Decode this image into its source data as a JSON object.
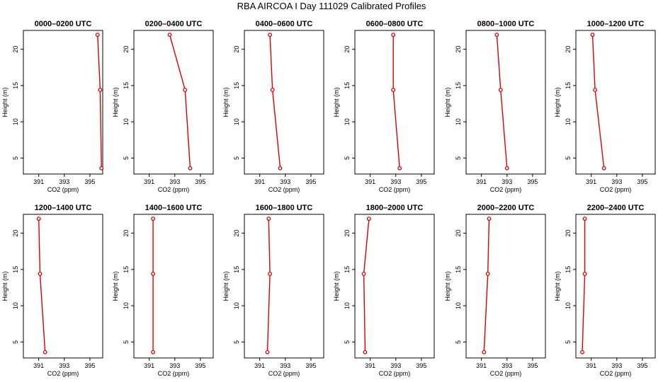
{
  "title": "RBA AIRCOA I  Day 111029  Calibrated Profiles",
  "chart_data": {
    "type": "line",
    "xlabel": "CO2 (ppm)",
    "ylabel": "Height (m)",
    "xlim": [
      389.8,
      396.0
    ],
    "ylim": [
      2.8,
      22.6
    ],
    "xticks": [
      391,
      393,
      395
    ],
    "yticks": [
      5,
      10,
      15,
      20
    ],
    "line_color": "#dd0000",
    "panels": [
      {
        "title": "0000–0200 UTC",
        "x": [
          395.6,
          395.8,
          395.9
        ],
        "y": [
          22,
          14.4,
          3.6
        ]
      },
      {
        "title": "0200–0400 UTC",
        "x": [
          392.6,
          393.8,
          394.2
        ],
        "y": [
          22,
          14.4,
          3.6
        ]
      },
      {
        "title": "0400–0600 UTC",
        "x": [
          391.8,
          392.0,
          392.6
        ],
        "y": [
          22,
          14.4,
          3.6
        ]
      },
      {
        "title": "0600–0800 UTC",
        "x": [
          392.8,
          392.8,
          393.3
        ],
        "y": [
          22,
          14.4,
          3.6
        ]
      },
      {
        "title": "0800–1000 UTC",
        "x": [
          392.2,
          392.5,
          393.0
        ],
        "y": [
          22,
          14.4,
          3.6
        ]
      },
      {
        "title": "1000–1200 UTC",
        "x": [
          391.1,
          391.3,
          392.0
        ],
        "y": [
          22,
          14.4,
          3.6
        ]
      },
      {
        "title": "1200–1400 UTC",
        "x": [
          391.0,
          391.1,
          391.5
        ],
        "y": [
          22,
          14.4,
          3.6
        ]
      },
      {
        "title": "1400–1600 UTC",
        "x": [
          391.3,
          391.3,
          391.3
        ],
        "y": [
          22,
          14.4,
          3.6
        ]
      },
      {
        "title": "1600–1800 UTC",
        "x": [
          391.7,
          391.8,
          391.6
        ],
        "y": [
          22,
          14.4,
          3.6
        ]
      },
      {
        "title": "1800–2000 UTC",
        "x": [
          390.9,
          390.5,
          390.6
        ],
        "y": [
          22,
          14.4,
          3.6
        ]
      },
      {
        "title": "2000–2200 UTC",
        "x": [
          391.6,
          391.5,
          391.2
        ],
        "y": [
          22,
          14.4,
          3.6
        ]
      },
      {
        "title": "2200–2400 UTC",
        "x": [
          390.5,
          390.5,
          390.3
        ],
        "y": [
          22,
          14.4,
          3.6
        ]
      }
    ]
  }
}
